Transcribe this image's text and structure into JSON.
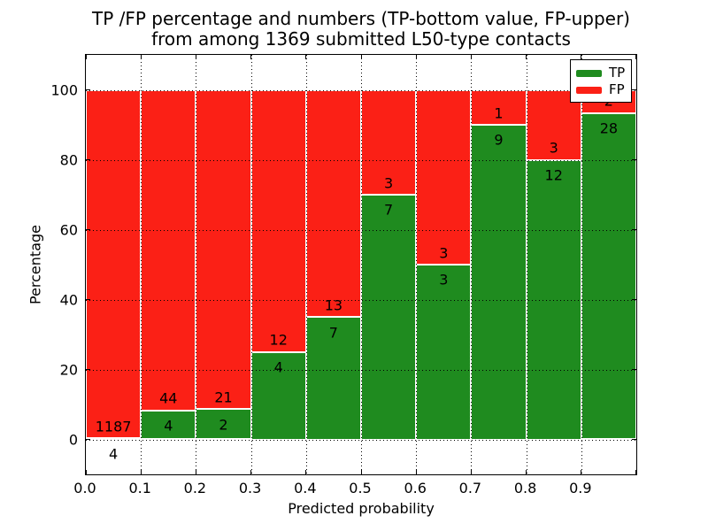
{
  "chart_data": {
    "type": "bar",
    "stacked": true,
    "normalized_to_percent": 100,
    "title_line1": "TP /FP percentage and numbers (TP-bottom value, FP-upper)",
    "title_line2": "from among 1369 submitted L50-type contacts",
    "xlabel": "Predicted probability",
    "ylabel": "Percentage",
    "total_contacts": 1369,
    "bin_width": 0.1,
    "bin_starts": [
      0.0,
      0.1,
      0.2,
      0.3,
      0.4,
      0.5,
      0.6,
      0.7,
      0.8,
      0.9
    ],
    "x_tick_labels": [
      "0.0",
      "0.1",
      "0.2",
      "0.3",
      "0.4",
      "0.5",
      "0.6",
      "0.7",
      "0.8",
      "0.9"
    ],
    "y_ticks": [
      0,
      20,
      40,
      60,
      80,
      100
    ],
    "xlim": [
      0.0,
      1.0
    ],
    "ylim": [
      -10,
      110
    ],
    "grid": "dotted",
    "legend_position": "upper right",
    "series": [
      {
        "name": "TP",
        "color": "#1f8b1f",
        "counts": [
          4,
          4,
          2,
          4,
          7,
          7,
          3,
          9,
          12,
          28
        ]
      },
      {
        "name": "FP",
        "color": "#fb2016",
        "counts": [
          1187,
          44,
          21,
          12,
          13,
          3,
          3,
          1,
          3,
          2
        ]
      }
    ],
    "tp_percent": [
      0.34,
      8.33,
      8.7,
      25.0,
      35.0,
      70.0,
      50.0,
      90.0,
      80.0,
      93.33
    ],
    "label_offset_above_boundary": 3.4,
    "label_offset_below_boundary": 4.4
  }
}
